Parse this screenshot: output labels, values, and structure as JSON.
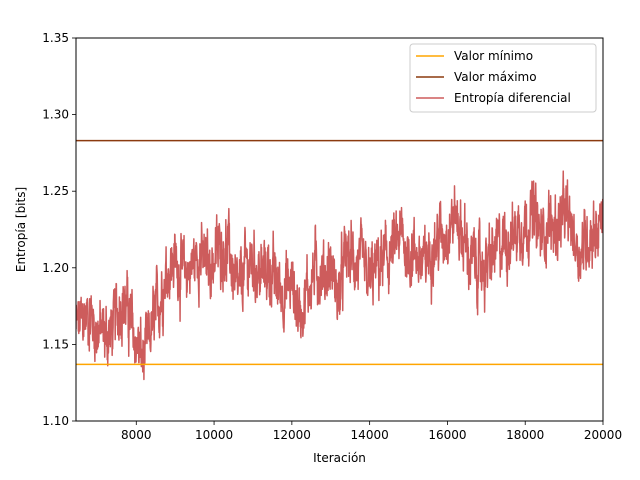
{
  "chart_data": {
    "type": "line",
    "title": "",
    "xlabel": "Iteración",
    "ylabel": "Entropía [bits]",
    "xlim": [
      6450,
      20000
    ],
    "ylim": [
      1.1,
      1.35
    ],
    "x_ticks": [
      "8000",
      "10000",
      "12000",
      "14000",
      "16000",
      "18000",
      "20000"
    ],
    "y_ticks": [
      "1.10",
      "1.15",
      "1.20",
      "1.25",
      "1.30",
      "1.35"
    ],
    "grid": false,
    "legend_position": "top-right",
    "min_value": 1.137,
    "max_value": 1.283,
    "series": [
      {
        "name": "Valor mínimo",
        "color": "#FFA500",
        "kind": "hline",
        "value": 1.137
      },
      {
        "name": "Valor máximo",
        "color": "#8B3A0F",
        "kind": "hline",
        "value": 1.283
      },
      {
        "name": "Entropía diferencial",
        "color": "#CD5C5C",
        "kind": "line",
        "x": [
          6450,
          6600,
          6800,
          7000,
          7200,
          7400,
          7600,
          7800,
          8000,
          8200,
          8400,
          8600,
          8800,
          9000,
          9200,
          9400,
          9600,
          9800,
          10000,
          10200,
          10400,
          10600,
          10800,
          11000,
          11200,
          11400,
          11600,
          11800,
          12000,
          12200,
          12400,
          12600,
          12800,
          13000,
          13200,
          13400,
          13600,
          13800,
          14000,
          14200,
          14400,
          14600,
          14800,
          15000,
          15200,
          15400,
          15600,
          15800,
          16000,
          16200,
          16400,
          16600,
          16800,
          17000,
          17200,
          17400,
          17600,
          17800,
          18000,
          18200,
          18400,
          18600,
          18800,
          19000,
          19200,
          19400,
          19600,
          19800,
          20000
        ],
        "y": [
          1.16,
          1.165,
          1.17,
          1.16,
          1.155,
          1.16,
          1.18,
          1.17,
          1.15,
          1.14,
          1.16,
          1.18,
          1.2,
          1.205,
          1.195,
          1.2,
          1.21,
          1.2,
          1.205,
          1.215,
          1.21,
          1.18,
          1.2,
          1.205,
          1.195,
          1.2,
          1.19,
          1.185,
          1.19,
          1.17,
          1.185,
          1.2,
          1.195,
          1.2,
          1.18,
          1.21,
          1.205,
          1.2,
          1.19,
          1.2,
          1.205,
          1.21,
          1.22,
          1.21,
          1.21,
          1.2,
          1.215,
          1.22,
          1.225,
          1.235,
          1.22,
          1.205,
          1.2,
          1.2,
          1.21,
          1.215,
          1.22,
          1.225,
          1.23,
          1.235,
          1.22,
          1.23,
          1.225,
          1.235,
          1.225,
          1.21,
          1.22,
          1.225,
          1.23
        ],
        "noise_amplitude": 0.012
      }
    ]
  }
}
